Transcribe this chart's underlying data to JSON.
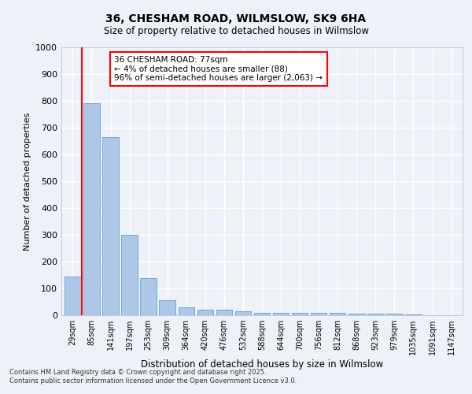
{
  "title1": "36, CHESHAM ROAD, WILMSLOW, SK9 6HA",
  "title2": "Size of property relative to detached houses in Wilmslow",
  "xlabel": "Distribution of detached houses by size in Wilmslow",
  "ylabel": "Number of detached properties",
  "categories": [
    "29sqm",
    "85sqm",
    "141sqm",
    "197sqm",
    "253sqm",
    "309sqm",
    "364sqm",
    "420sqm",
    "476sqm",
    "532sqm",
    "588sqm",
    "644sqm",
    "700sqm",
    "756sqm",
    "812sqm",
    "868sqm",
    "923sqm",
    "979sqm",
    "1035sqm",
    "1091sqm",
    "1147sqm"
  ],
  "values": [
    145,
    790,
    665,
    300,
    138,
    55,
    28,
    20,
    20,
    15,
    10,
    10,
    10,
    10,
    8,
    5,
    5,
    5,
    3,
    0,
    0
  ],
  "bar_color": "#aec6e8",
  "bar_edge_color": "#6aaad4",
  "vline_color": "red",
  "annotation_text": "36 CHESHAM ROAD: 77sqm\n← 4% of detached houses are smaller (88)\n96% of semi-detached houses are larger (2,063) →",
  "annotation_box_color": "white",
  "annotation_box_edge_color": "red",
  "ylim": [
    0,
    1000
  ],
  "yticks": [
    0,
    100,
    200,
    300,
    400,
    500,
    600,
    700,
    800,
    900,
    1000
  ],
  "footer1": "Contains HM Land Registry data © Crown copyright and database right 2025.",
  "footer2": "Contains public sector information licensed under the Open Government Licence v3.0.",
  "background_color": "#eef2f8",
  "grid_color": "white"
}
